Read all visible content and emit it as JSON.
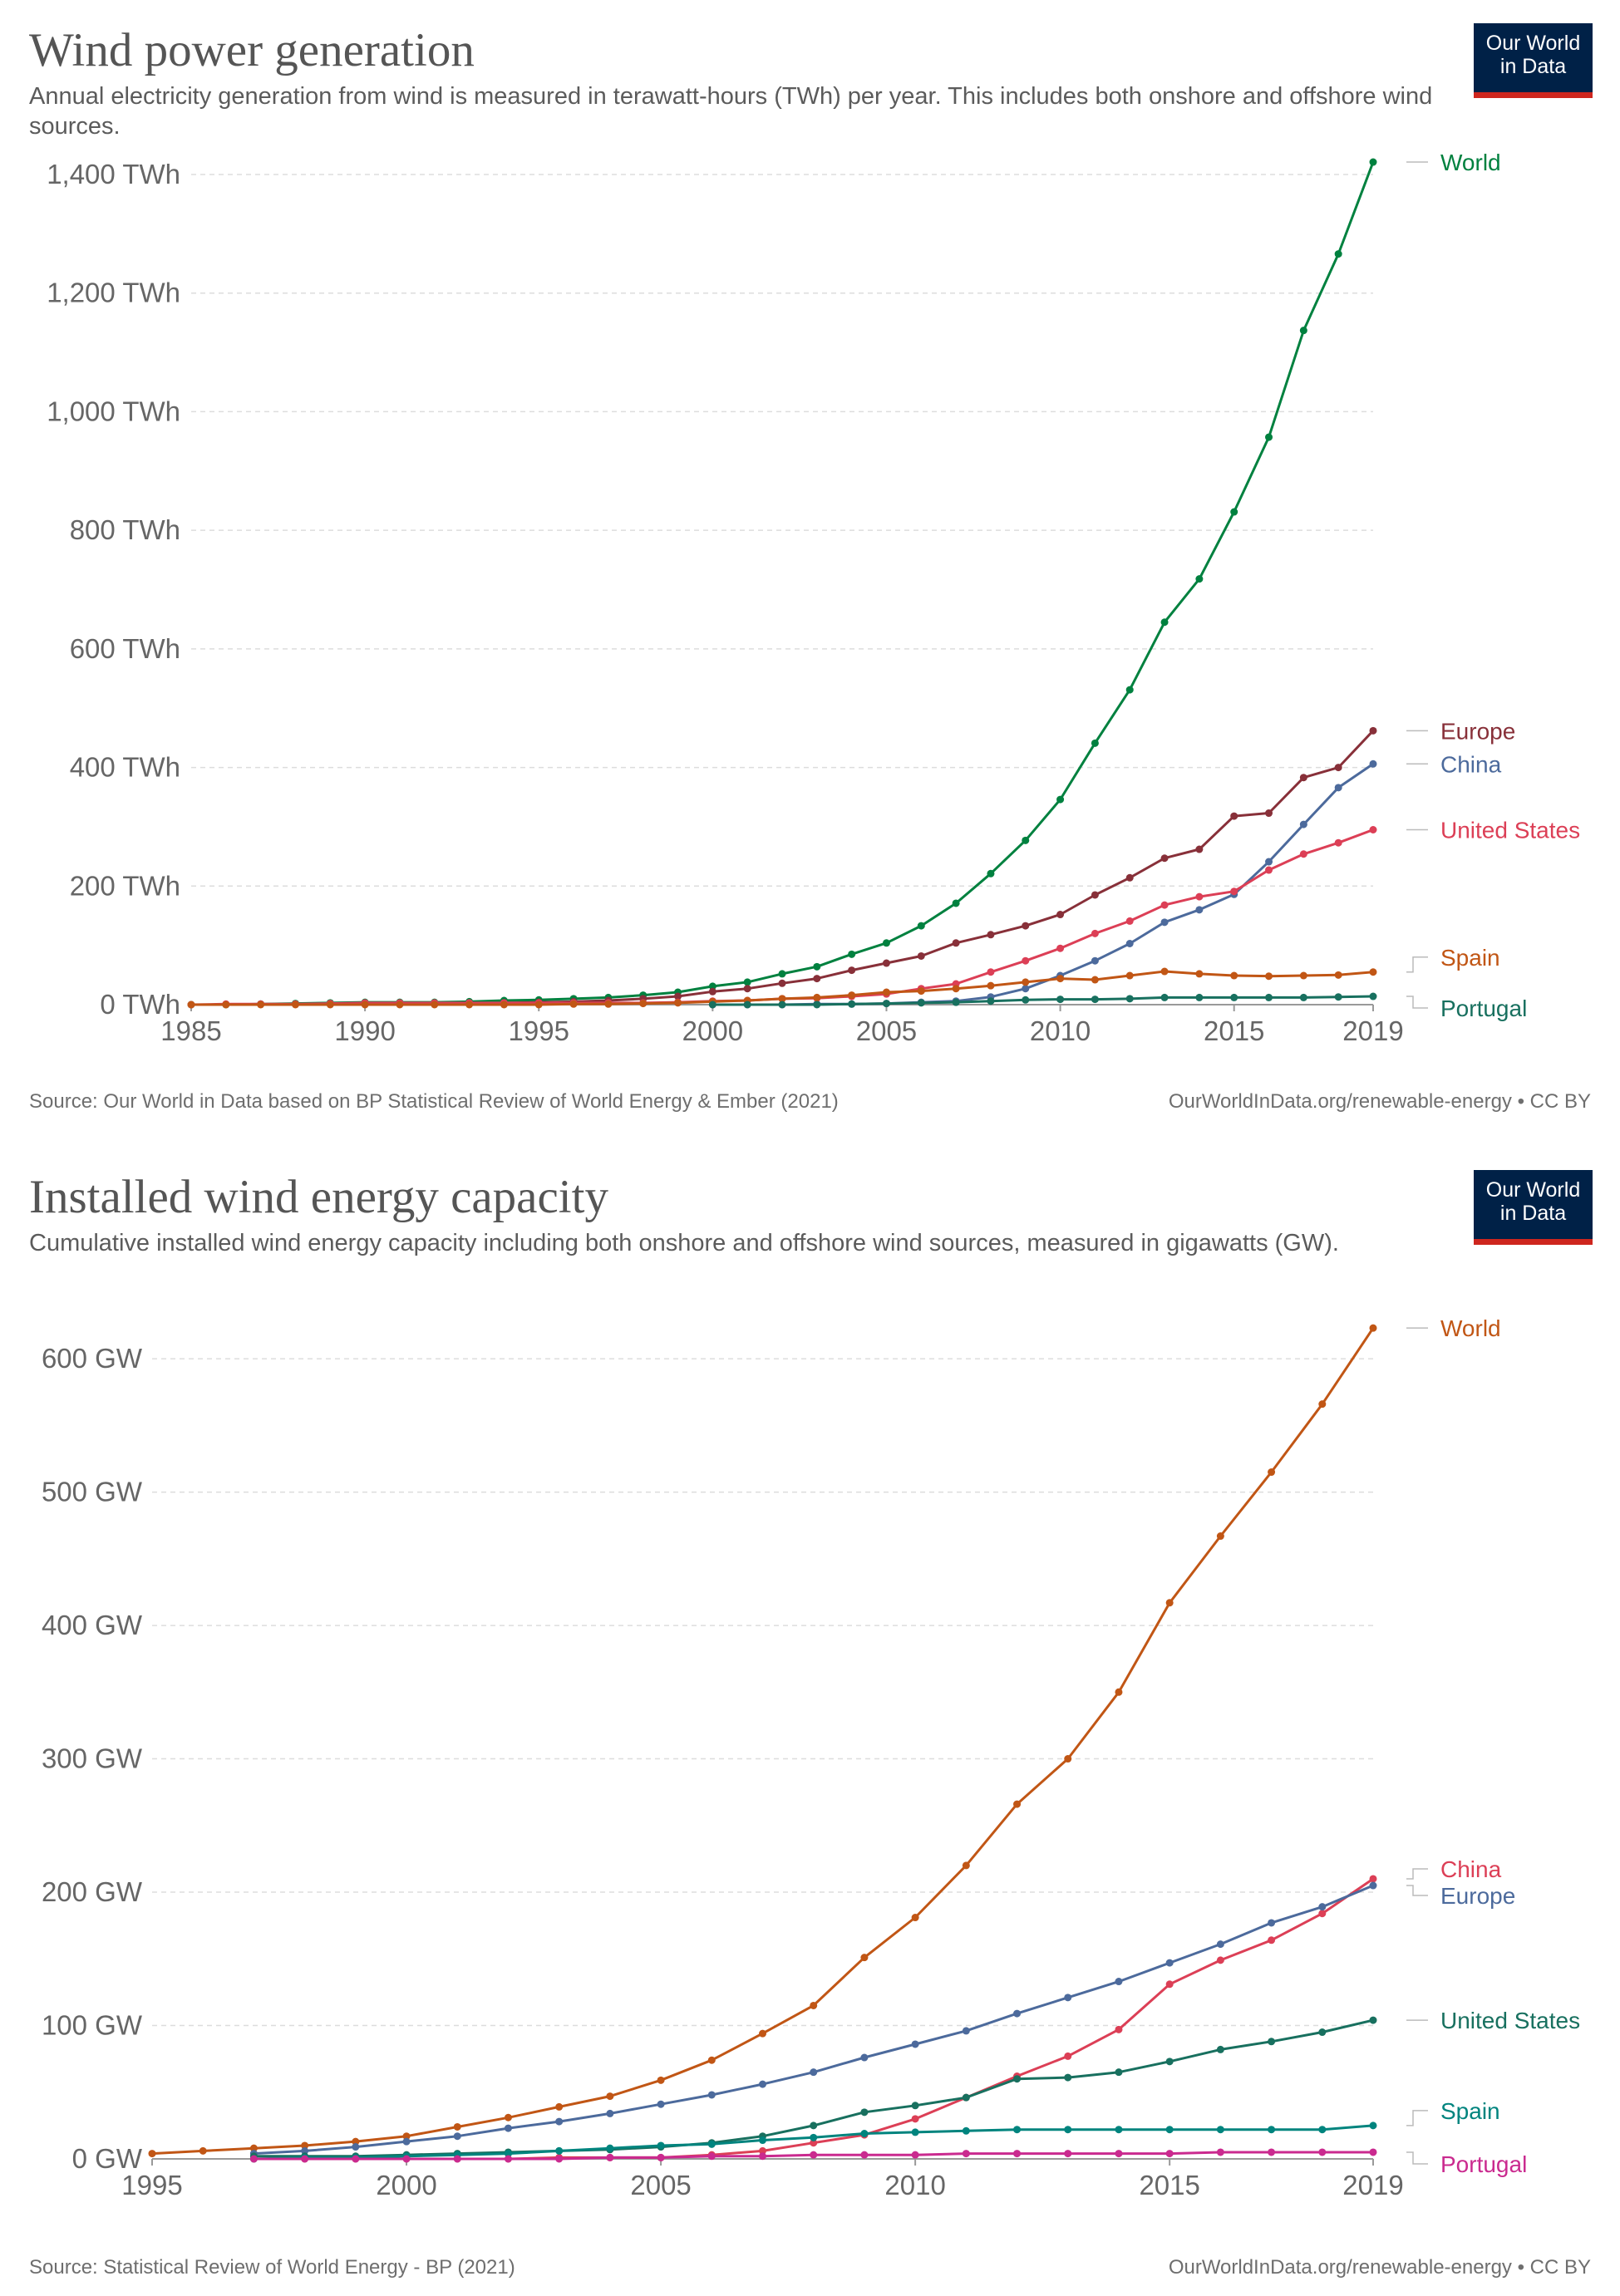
{
  "panels": [
    {
      "title": "Wind power generation",
      "subtitle": "Annual electricity generation from wind is measured in terawatt-hours (TWh) per year. This includes both onshore and offshore wind sources.",
      "logo": {
        "line1": "Our World",
        "line2": "in Data"
      },
      "source": "Source: Our World in Data based on BP Statistical Review of World Energy & Ember (2021)",
      "license": "OurWorldInData.org/renewable-energy • CC BY"
    },
    {
      "title": "Installed wind energy capacity",
      "subtitle": "Cumulative installed wind energy capacity including both onshore and offshore wind sources, measured in gigawatts (GW).",
      "logo": {
        "line1": "Our World",
        "line2": "in Data"
      },
      "source": "Source: Statistical Review of World Energy - BP (2021)",
      "license": "OurWorldInData.org/renewable-energy • CC BY"
    }
  ],
  "chart_data": [
    {
      "type": "line",
      "title": "Wind power generation",
      "subtitle": "Annual electricity generation from wind is measured in terawatt-hours (TWh) per year. This includes both onshore and offshore wind sources.",
      "xlabel": "",
      "ylabel": "",
      "unit": "TWh",
      "xlim": [
        1985,
        2019
      ],
      "ylim": [
        0,
        1400
      ],
      "xticks": [
        "1985",
        "1990",
        "1995",
        "2000",
        "2005",
        "2010",
        "2015",
        "2019"
      ],
      "yticks": [
        "0 TWh",
        "200 TWh",
        "400 TWh",
        "600 TWh",
        "800 TWh",
        "1,000 TWh",
        "1,200 TWh",
        "1,400 TWh"
      ],
      "ytick_values": [
        0,
        200,
        400,
        600,
        800,
        1000,
        1200,
        1400
      ],
      "grid": true,
      "legend": "line-end labels",
      "series": [
        {
          "name": "World",
          "color": "#00813f",
          "x": [
            1985,
            1986,
            1987,
            1988,
            1989,
            1990,
            1991,
            1992,
            1993,
            1994,
            1995,
            1996,
            1997,
            1998,
            1999,
            2000,
            2001,
            2002,
            2003,
            2004,
            2005,
            2006,
            2007,
            2008,
            2009,
            2010,
            2011,
            2012,
            2013,
            2014,
            2015,
            2016,
            2017,
            2018,
            2019
          ],
          "y": [
            0,
            0,
            1,
            2,
            3,
            4,
            4,
            4,
            5,
            7,
            8,
            10,
            12,
            16,
            21,
            31,
            38,
            52,
            64,
            85,
            104,
            133,
            171,
            221,
            277,
            346,
            441,
            531,
            645,
            718,
            831,
            957,
            1137,
            1266,
            1421
          ]
        },
        {
          "name": "Europe",
          "color": "#883039",
          "x": [
            1990,
            1991,
            1992,
            1993,
            1994,
            1995,
            1996,
            1997,
            1998,
            1999,
            2000,
            2001,
            2002,
            2003,
            2004,
            2005,
            2006,
            2007,
            2008,
            2009,
            2010,
            2011,
            2012,
            2013,
            2014,
            2015,
            2016,
            2017,
            2018,
            2019
          ],
          "y": [
            1,
            1,
            2,
            2,
            3,
            4,
            5,
            7,
            10,
            14,
            22,
            27,
            36,
            44,
            58,
            70,
            82,
            104,
            118,
            133,
            152,
            185,
            214,
            247,
            262,
            318,
            323,
            383,
            400,
            462
          ]
        },
        {
          "name": "China",
          "color": "#4c6a9c",
          "x": [
            2000,
            2001,
            2002,
            2003,
            2004,
            2005,
            2006,
            2007,
            2008,
            2009,
            2010,
            2011,
            2012,
            2013,
            2014,
            2015,
            2016,
            2017,
            2018,
            2019
          ],
          "y": [
            0,
            0,
            0,
            1,
            1,
            2,
            4,
            6,
            13,
            27,
            49,
            74,
            103,
            139,
            160,
            186,
            241,
            304,
            366,
            406
          ]
        },
        {
          "name": "United States",
          "color": "#dc3f56",
          "x": [
            1985,
            1986,
            1987,
            1988,
            1989,
            1990,
            1991,
            1992,
            1993,
            1994,
            1995,
            1996,
            1997,
            1998,
            1999,
            2000,
            2001,
            2002,
            2003,
            2004,
            2005,
            2006,
            2007,
            2008,
            2009,
            2010,
            2011,
            2012,
            2013,
            2014,
            2015,
            2016,
            2017,
            2018,
            2019
          ],
          "y": [
            0,
            1,
            1,
            1,
            2,
            3,
            3,
            3,
            3,
            3,
            3,
            3,
            3,
            3,
            4,
            6,
            7,
            10,
            11,
            14,
            18,
            27,
            35,
            55,
            74,
            95,
            120,
            141,
            168,
            182,
            191,
            227,
            254,
            273,
            295
          ]
        },
        {
          "name": "Spain",
          "color": "#c15615",
          "x": [
            1985,
            1986,
            1987,
            1988,
            1989,
            1990,
            1991,
            1992,
            1993,
            1994,
            1995,
            1996,
            1997,
            1998,
            1999,
            2000,
            2001,
            2002,
            2003,
            2004,
            2005,
            2006,
            2007,
            2008,
            2009,
            2010,
            2011,
            2012,
            2013,
            2014,
            2015,
            2016,
            2017,
            2018,
            2019
          ],
          "y": [
            0,
            0,
            0,
            0,
            0,
            0,
            0,
            0,
            0,
            0,
            0,
            1,
            1,
            2,
            3,
            5,
            7,
            10,
            12,
            16,
            21,
            23,
            27,
            32,
            38,
            44,
            42,
            49,
            56,
            52,
            49,
            48,
            49,
            50,
            55
          ]
        },
        {
          "name": "Portugal",
          "color": "#18705f",
          "x": [
            2000,
            2001,
            2002,
            2003,
            2004,
            2005,
            2006,
            2007,
            2008,
            2009,
            2010,
            2011,
            2012,
            2013,
            2014,
            2015,
            2016,
            2017,
            2018,
            2019
          ],
          "y": [
            0,
            0,
            0,
            0,
            1,
            2,
            3,
            4,
            6,
            8,
            9,
            9,
            10,
            12,
            12,
            12,
            12,
            12,
            13,
            14
          ]
        }
      ]
    },
    {
      "type": "line",
      "title": "Installed wind energy capacity",
      "subtitle": "Cumulative installed wind energy capacity including both onshore and offshore wind sources, measured in gigawatts (GW).",
      "xlabel": "",
      "ylabel": "",
      "unit": "GW",
      "xlim": [
        1995,
        2019
      ],
      "ylim": [
        0,
        620
      ],
      "xticks": [
        "1995",
        "2000",
        "2005",
        "2010",
        "2015",
        "2019"
      ],
      "yticks": [
        "0 GW",
        "100 GW",
        "200 GW",
        "300 GW",
        "400 GW",
        "500 GW",
        "600 GW"
      ],
      "ytick_values": [
        0,
        100,
        200,
        300,
        400,
        500,
        600
      ],
      "grid": true,
      "legend": "line-end labels",
      "series": [
        {
          "name": "World",
          "color": "#c15615",
          "x": [
            1995,
            1996,
            1997,
            1998,
            1999,
            2000,
            2001,
            2002,
            2003,
            2004,
            2005,
            2006,
            2007,
            2008,
            2009,
            2010,
            2011,
            2012,
            2013,
            2014,
            2015,
            2016,
            2017,
            2018,
            2019
          ],
          "y": [
            4,
            6,
            8,
            10,
            13,
            17,
            24,
            31,
            39,
            47,
            59,
            74,
            94,
            115,
            151,
            181,
            220,
            266,
            300,
            350,
            417,
            467,
            515,
            566,
            623
          ]
        },
        {
          "name": "China",
          "color": "#dc3f56",
          "x": [
            1997,
            1998,
            1999,
            2000,
            2001,
            2002,
            2003,
            2004,
            2005,
            2006,
            2007,
            2008,
            2009,
            2010,
            2011,
            2012,
            2013,
            2014,
            2015,
            2016,
            2017,
            2018,
            2019
          ],
          "y": [
            0,
            0,
            0,
            0,
            0,
            0,
            1,
            1,
            1,
            3,
            6,
            12,
            18,
            30,
            46,
            62,
            77,
            97,
            131,
            149,
            164,
            184,
            210
          ]
        },
        {
          "name": "Europe",
          "color": "#4c6a9c",
          "x": [
            1997,
            1998,
            1999,
            2000,
            2001,
            2002,
            2003,
            2004,
            2005,
            2006,
            2007,
            2008,
            2009,
            2010,
            2011,
            2012,
            2013,
            2014,
            2015,
            2016,
            2017,
            2018,
            2019
          ],
          "y": [
            4,
            6,
            9,
            13,
            17,
            23,
            28,
            34,
            41,
            48,
            56,
            65,
            76,
            86,
            96,
            109,
            121,
            133,
            147,
            161,
            177,
            189,
            205
          ]
        },
        {
          "name": "United States",
          "color": "#18705f",
          "x": [
            1997,
            1998,
            1999,
            2000,
            2001,
            2002,
            2003,
            2004,
            2005,
            2006,
            2007,
            2008,
            2009,
            2010,
            2011,
            2012,
            2013,
            2014,
            2015,
            2016,
            2017,
            2018,
            2019
          ],
          "y": [
            2,
            2,
            2,
            3,
            4,
            5,
            6,
            7,
            9,
            12,
            17,
            25,
            35,
            40,
            46,
            60,
            61,
            65,
            73,
            82,
            88,
            95,
            104
          ]
        },
        {
          "name": "Spain",
          "color": "#00847e",
          "x": [
            1997,
            1998,
            1999,
            2000,
            2001,
            2002,
            2003,
            2004,
            2005,
            2006,
            2007,
            2008,
            2009,
            2010,
            2011,
            2012,
            2013,
            2014,
            2015,
            2016,
            2017,
            2018,
            2019
          ],
          "y": [
            0,
            1,
            1,
            2,
            3,
            4,
            6,
            8,
            10,
            11,
            14,
            16,
            19,
            20,
            21,
            22,
            22,
            22,
            22,
            22,
            22,
            22,
            25
          ]
        },
        {
          "name": "Portugal",
          "color": "#ca2a8f",
          "x": [
            1997,
            1998,
            1999,
            2000,
            2001,
            2002,
            2003,
            2004,
            2005,
            2006,
            2007,
            2008,
            2009,
            2010,
            2011,
            2012,
            2013,
            2014,
            2015,
            2016,
            2017,
            2018,
            2019
          ],
          "y": [
            0,
            0,
            0,
            0,
            0,
            0,
            0,
            1,
            1,
            2,
            2,
            3,
            3,
            3,
            4,
            4,
            4,
            4,
            4,
            5,
            5,
            5,
            5
          ]
        }
      ]
    }
  ]
}
